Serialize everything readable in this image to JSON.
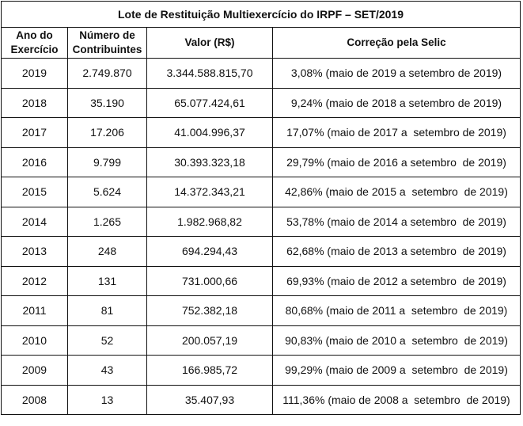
{
  "table": {
    "title": "Lote de Restituição Multiexercício do IRPF – SET/2019",
    "headers": {
      "ano_line1": "Ano do",
      "ano_line2": "Exercício",
      "numero_line1": "Número de",
      "numero_line2": "Contribuintes",
      "valor": "Valor (R$)",
      "correcao": "Correção pela Selic"
    },
    "rows": [
      {
        "ano": "2019",
        "contribuintes": "2.749.870",
        "valor": "3.344.588.815,70",
        "correcao": "3,08% (maio de 2019 a setembro de 2019)"
      },
      {
        "ano": "2018",
        "contribuintes": "35.190",
        "valor": "65.077.424,61",
        "correcao": "9,24% (maio de 2018 a setembro de 2019)"
      },
      {
        "ano": "2017",
        "contribuintes": "17.206",
        "valor": "41.004.996,37",
        "correcao": "17,07% (maio de 2017 a  setembro de 2019)"
      },
      {
        "ano": "2016",
        "contribuintes": "9.799",
        "valor": "30.393.323,18",
        "correcao": "29,79% (maio de 2016 a setembro  de 2019)"
      },
      {
        "ano": "2015",
        "contribuintes": "5.624",
        "valor": "14.372.343,21",
        "correcao": "42,86% (maio de 2015 a  setembro  de 2019)"
      },
      {
        "ano": "2014",
        "contribuintes": "1.265",
        "valor": "1.982.968,82",
        "correcao": "53,78% (maio de 2014 a setembro  de 2019)"
      },
      {
        "ano": "2013",
        "contribuintes": "248",
        "valor": "694.294,43",
        "correcao": "62,68% (maio de 2013 a setembro  de 2019)"
      },
      {
        "ano": "2012",
        "contribuintes": "131",
        "valor": "731.000,66",
        "correcao": "69,93% (maio de 2012 a setembro  de 2019)"
      },
      {
        "ano": "2011",
        "contribuintes": "81",
        "valor": "752.382,18",
        "correcao": "80,68% (maio de 2011 a  setembro  de 2019)"
      },
      {
        "ano": "2010",
        "contribuintes": "52",
        "valor": "200.057,19",
        "correcao": "90,83% (maio de 2010 a  setembro  de 2019)"
      },
      {
        "ano": "2009",
        "contribuintes": "43",
        "valor": "166.985,72",
        "correcao": "99,29% (maio de 2009 a  setembro  de 2019)"
      },
      {
        "ano": "2008",
        "contribuintes": "13",
        "valor": "35.407,93",
        "correcao": "111,36% (maio de 2008 a  setembro  de 2019)"
      }
    ]
  }
}
